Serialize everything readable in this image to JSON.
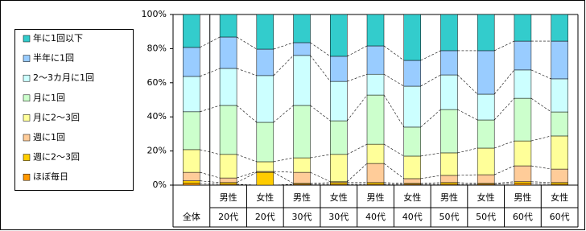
{
  "chart_data": {
    "type": "stacked_percent_bar",
    "categories": [
      [
        "全体"
      ],
      [
        "男性",
        "20代"
      ],
      [
        "女性",
        "20代"
      ],
      [
        "男性",
        "30代"
      ],
      [
        "女性",
        "30代"
      ],
      [
        "男性",
        "40代"
      ],
      [
        "女性",
        "40代"
      ],
      [
        "男性",
        "50代"
      ],
      [
        "女性",
        "50代"
      ],
      [
        "男性",
        "60代"
      ],
      [
        "女性",
        "60代"
      ]
    ],
    "series": [
      {
        "name": "ほぼ毎日",
        "color": "#ff9900",
        "values": [
          1,
          0.5,
          0,
          0.5,
          0.5,
          0.5,
          0.5,
          0.5,
          0.5,
          1,
          0.5
        ]
      },
      {
        "name": "週に2～3回",
        "color": "#ffcc00",
        "values": [
          1.5,
          1,
          7.5,
          0.5,
          1,
          1,
          0.5,
          1,
          0.5,
          1,
          1
        ]
      },
      {
        "name": "週に1回",
        "color": "#ffcc99",
        "values": [
          5,
          2.7,
          0.5,
          6.5,
          0.5,
          11.2,
          2.8,
          4.2,
          5.1,
          9.3,
          7.9
        ]
      },
      {
        "name": "月に2～3回",
        "color": "#ffff99",
        "values": [
          13.3,
          13.8,
          5.7,
          8.5,
          16,
          11.3,
          13.2,
          13.2,
          15.6,
          14.6,
          19.4
        ]
      },
      {
        "name": "月に1回",
        "color": "#ccffcc",
        "values": [
          22.2,
          28.7,
          23.1,
          30.7,
          19.7,
          28.8,
          17,
          25.4,
          16.5,
          25,
          14.1
        ]
      },
      {
        "name": "2～3カ月に1回",
        "color": "#ccffff",
        "values": [
          20.7,
          21.7,
          27.4,
          29.3,
          23.1,
          12.2,
          24,
          20.3,
          15.1,
          16.6,
          19.4
        ]
      },
      {
        "name": "半年に1回",
        "color": "#99ccff",
        "values": [
          17,
          18.4,
          15.5,
          7.5,
          14.7,
          16.6,
          15.1,
          14.2,
          25.5,
          16.9,
          22.1
        ]
      },
      {
        "name": "年に1回以下",
        "color": "#33cccc",
        "values": [
          19.3,
          13.2,
          20.3,
          16.5,
          24.5,
          18.4,
          26.9,
          21.2,
          21.2,
          15.6,
          15.6
        ]
      }
    ],
    "ylim": [
      0,
      100
    ],
    "yticks": [
      {
        "value": 0,
        "label": "0%"
      },
      {
        "value": 20,
        "label": "20%"
      },
      {
        "value": 40,
        "label": "40%"
      },
      {
        "value": 60,
        "label": "60%"
      },
      {
        "value": 80,
        "label": "80%"
      },
      {
        "value": 100,
        "label": "100%"
      }
    ],
    "legend": "left"
  }
}
